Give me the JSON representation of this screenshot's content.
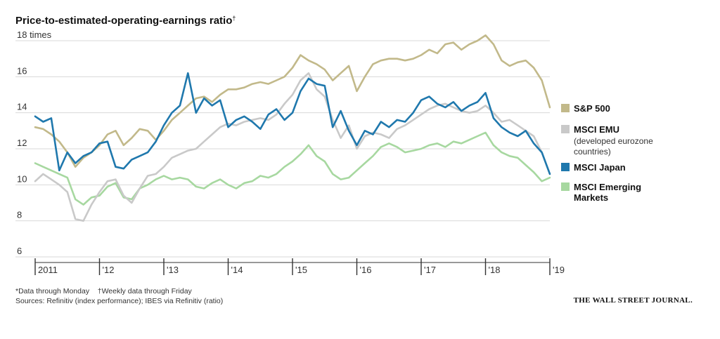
{
  "colors": {
    "sp500": "#c2b98a",
    "msci_emu": "#c9c9c9",
    "msci_japan": "#1f78ad",
    "msci_em": "#a7d8a0",
    "grid": "#d8d8d8",
    "axis": "#333333"
  },
  "chart_data": {
    "type": "line",
    "title": "Price-to-estimated-operating-earnings ratio",
    "title_marker": "†",
    "ylim": [
      6,
      18
    ],
    "yticks": [
      6,
      8,
      10,
      12,
      14,
      16,
      18
    ],
    "ytick_labels": [
      "6",
      "8",
      "10",
      "12",
      "14",
      "16",
      "18 times"
    ],
    "x_tick_labels": [
      "2011",
      "'12",
      "'13",
      "'14",
      "'15",
      "'16",
      "'17",
      "'18",
      "'19"
    ],
    "xlim": [
      2011,
      2019
    ],
    "x": [
      2011.0,
      2011.125,
      2011.25,
      2011.375,
      2011.5,
      2011.625,
      2011.75,
      2011.875,
      2012.0,
      2012.125,
      2012.25,
      2012.375,
      2012.5,
      2012.625,
      2012.75,
      2012.875,
      2013.0,
      2013.125,
      2013.25,
      2013.375,
      2013.5,
      2013.625,
      2013.75,
      2013.875,
      2014.0,
      2014.125,
      2014.25,
      2014.375,
      2014.5,
      2014.625,
      2014.75,
      2014.875,
      2015.0,
      2015.125,
      2015.25,
      2015.375,
      2015.5,
      2015.625,
      2015.75,
      2015.875,
      2016.0,
      2016.125,
      2016.25,
      2016.375,
      2016.5,
      2016.625,
      2016.75,
      2016.875,
      2017.0,
      2017.125,
      2017.25,
      2017.375,
      2017.5,
      2017.625,
      2017.75,
      2017.875,
      2018.0,
      2018.125,
      2018.25,
      2018.375,
      2018.5,
      2018.625,
      2018.75,
      2018.875,
      2019.0
    ],
    "series": [
      {
        "name": "S&P 500",
        "color_key": "sp500",
        "values": [
          13.2,
          13.1,
          12.8,
          12.4,
          11.8,
          11.0,
          11.5,
          11.8,
          12.2,
          12.8,
          13.0,
          12.2,
          12.6,
          13.1,
          13.0,
          12.5,
          13.0,
          13.6,
          14.0,
          14.4,
          14.8,
          14.9,
          14.6,
          15.0,
          15.3,
          15.3,
          15.4,
          15.6,
          15.7,
          15.6,
          15.8,
          16.0,
          16.5,
          17.2,
          16.9,
          16.7,
          16.4,
          15.8,
          16.2,
          16.6,
          15.2,
          16.0,
          16.7,
          16.9,
          17.0,
          17.0,
          16.9,
          17.0,
          17.2,
          17.5,
          17.3,
          17.8,
          17.9,
          17.5,
          17.8,
          18.0,
          18.3,
          17.8,
          16.9,
          16.6,
          16.8,
          16.9,
          16.5,
          15.8,
          14.3
        ]
      },
      {
        "name": "MSCI EMU (developed eurozone countries)",
        "color_key": "msci_emu",
        "values": [
          10.2,
          10.6,
          10.3,
          10.0,
          9.6,
          8.1,
          8.0,
          8.9,
          9.6,
          10.2,
          10.3,
          9.4,
          9.0,
          9.8,
          10.5,
          10.6,
          11.0,
          11.5,
          11.7,
          11.9,
          12.0,
          12.4,
          12.8,
          13.2,
          13.4,
          13.3,
          13.5,
          13.6,
          13.7,
          13.6,
          13.9,
          14.5,
          15.0,
          15.8,
          16.2,
          15.3,
          14.9,
          13.6,
          12.6,
          13.3,
          12.0,
          12.7,
          12.9,
          12.8,
          12.6,
          13.1,
          13.3,
          13.6,
          13.9,
          14.2,
          14.4,
          14.5,
          14.3,
          14.1,
          14.0,
          14.1,
          14.4,
          14.0,
          13.5,
          13.6,
          13.3,
          13.0,
          12.7,
          11.8,
          10.6
        ]
      },
      {
        "name": "MSCI Japan",
        "color_key": "msci_japan",
        "values": [
          13.8,
          13.5,
          13.7,
          10.8,
          11.8,
          11.2,
          11.6,
          11.8,
          12.3,
          12.4,
          11.0,
          10.9,
          11.4,
          11.6,
          11.8,
          12.4,
          13.3,
          14.0,
          14.4,
          16.2,
          14.0,
          14.8,
          14.4,
          14.7,
          13.2,
          13.6,
          13.8,
          13.5,
          13.1,
          13.9,
          14.2,
          13.6,
          14.0,
          15.2,
          15.9,
          15.6,
          15.5,
          13.2,
          14.1,
          13.0,
          12.2,
          13.0,
          12.8,
          13.5,
          13.2,
          13.6,
          13.5,
          14.0,
          14.7,
          14.9,
          14.5,
          14.3,
          14.6,
          14.1,
          14.4,
          14.6,
          15.1,
          13.7,
          13.2,
          12.9,
          12.7,
          13.0,
          12.3,
          11.8,
          10.6
        ]
      },
      {
        "name": "MSCI Emerging Markets",
        "color_key": "msci_em",
        "values": [
          11.2,
          11.0,
          10.8,
          10.6,
          10.4,
          9.2,
          8.9,
          9.3,
          9.4,
          9.9,
          10.1,
          9.3,
          9.2,
          9.8,
          10.0,
          10.3,
          10.5,
          10.3,
          10.4,
          10.3,
          9.9,
          9.8,
          10.1,
          10.3,
          10.0,
          9.8,
          10.1,
          10.2,
          10.5,
          10.4,
          10.6,
          11.0,
          11.3,
          11.7,
          12.2,
          11.6,
          11.3,
          10.6,
          10.3,
          10.4,
          10.8,
          11.2,
          11.6,
          12.1,
          12.3,
          12.1,
          11.8,
          11.9,
          12.0,
          12.2,
          12.3,
          12.1,
          12.4,
          12.3,
          12.5,
          12.7,
          12.9,
          12.2,
          11.8,
          11.6,
          11.5,
          11.1,
          10.7,
          10.2,
          10.4
        ]
      }
    ]
  },
  "legend": {
    "sp500": "S&P 500",
    "emu_line1": "MSCI EMU",
    "emu_line2": "(developed eurozone",
    "emu_line3": "countries)",
    "japan": "MSCI Japan",
    "em_line1": "MSCI Emerging",
    "em_line2": "Markets"
  },
  "footnotes": {
    "line1": "*Data through Monday    †Weekly data through Friday",
    "line2": "Sources: Refinitiv (index performance); IBES via Refinitiv (ratio)"
  },
  "brand": "THE WALL STREET JOURNAL."
}
